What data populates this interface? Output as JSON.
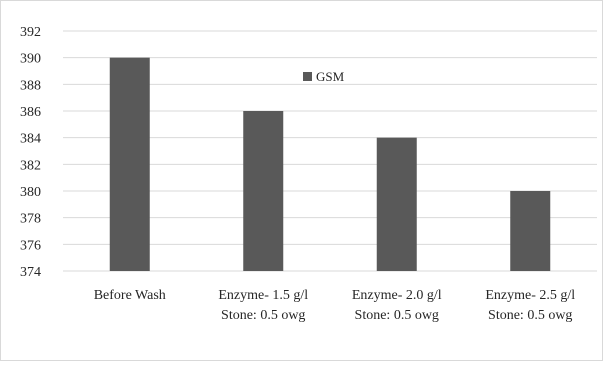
{
  "chart_data": {
    "type": "bar",
    "categories": [
      [
        "Before Wash"
      ],
      [
        "Enzyme- 1.5 g/l",
        "Stone: 0.5 owg"
      ],
      [
        "Enzyme- 2.0 g/l",
        "Stone: 0.5 owg"
      ],
      [
        "Enzyme- 2.5 g/l",
        "Stone: 0.5 owg"
      ]
    ],
    "series": [
      {
        "name": "GSM",
        "values": [
          390,
          386,
          384,
          380
        ]
      }
    ],
    "ylim": [
      374,
      392
    ],
    "yticks": [
      374,
      376,
      378,
      380,
      382,
      384,
      386,
      388,
      390,
      392
    ],
    "grid": true,
    "legend_position": "top-center",
    "colors": {
      "bar": "#595959",
      "grid": "#d9d9d9",
      "text": "#262626"
    }
  }
}
